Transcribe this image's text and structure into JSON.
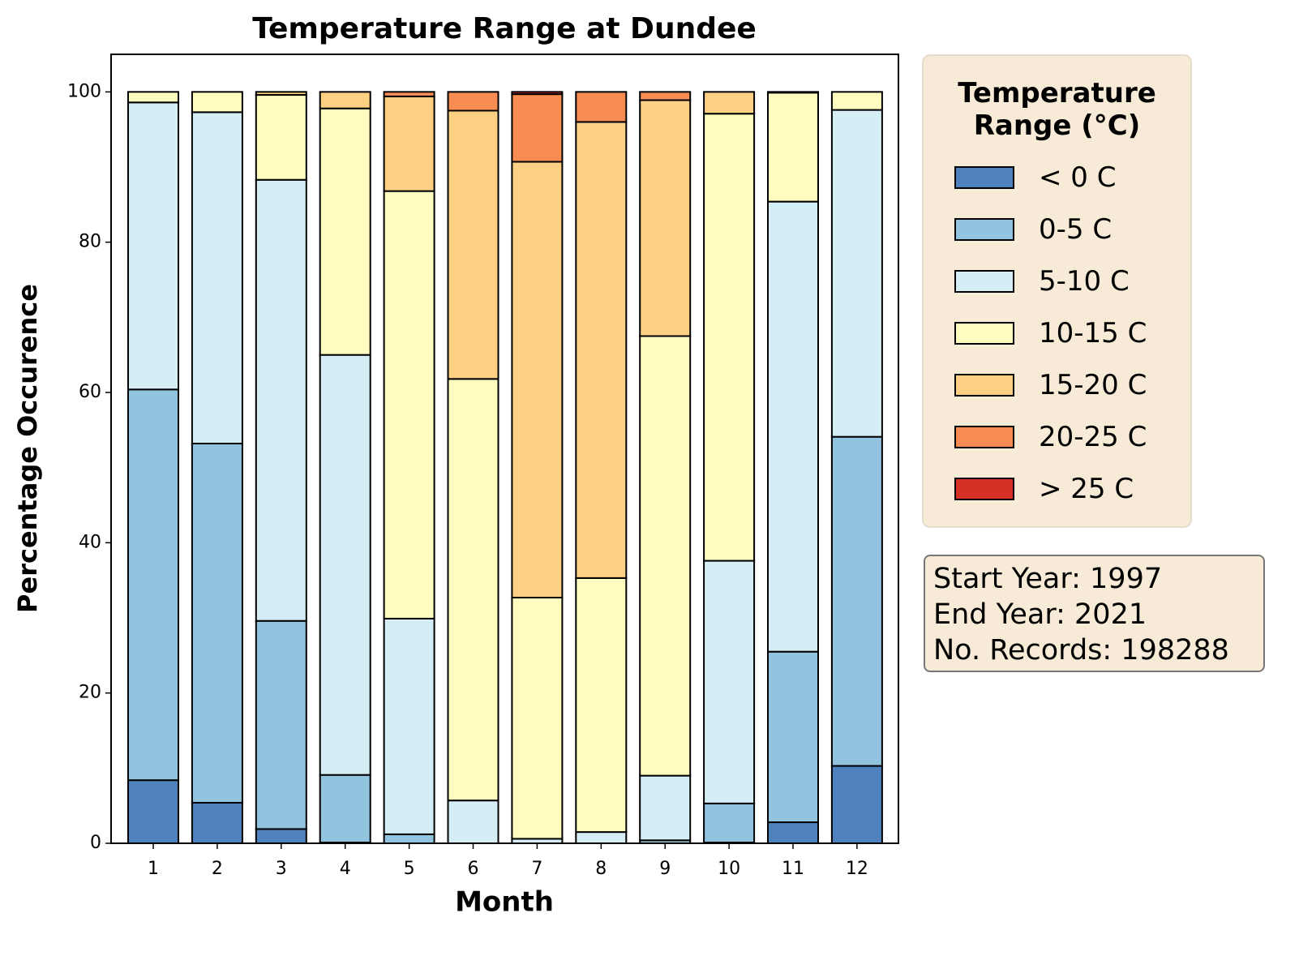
{
  "chart_data": {
    "type": "stacked_bar",
    "title": "Temperature Range at Dundee",
    "x_label": "Month",
    "y_label": "Percentage Occurence",
    "categories": [
      "1",
      "2",
      "3",
      "4",
      "5",
      "6",
      "7",
      "8",
      "9",
      "10",
      "11",
      "12"
    ],
    "ylim": [
      0,
      105
    ],
    "yticks": [
      0,
      20,
      40,
      60,
      80,
      100
    ],
    "legend_title": "Temperature Range (°C)",
    "annotation": [
      "Start Year: 1997",
      "End Year: 2021",
      "No. Records: 198288"
    ],
    "series": [
      {
        "name": "< 0 C",
        "color": "#4f81bc",
        "values": [
          8.4,
          5.4,
          1.9,
          0.1,
          0,
          0,
          0,
          0,
          0,
          0.1,
          2.8,
          10.3
        ]
      },
      {
        "name": "0-5 C",
        "color": "#92c4e0",
        "values": [
          52.0,
          47.8,
          27.7,
          9.0,
          1.2,
          0,
          0,
          0,
          0.4,
          5.2,
          22.7,
          43.8
        ]
      },
      {
        "name": "5-10 C",
        "color": "#d5edf4",
        "values": [
          38.2,
          44.1,
          58.7,
          55.9,
          28.7,
          5.7,
          0.6,
          1.5,
          8.6,
          32.3,
          59.9,
          43.5
        ]
      },
      {
        "name": "10-15 C",
        "color": "#fefcbe",
        "values": [
          1.4,
          2.7,
          11.3,
          32.8,
          56.9,
          56.1,
          32.1,
          33.8,
          58.5,
          59.5,
          14.5,
          2.4
        ]
      },
      {
        "name": "15-20 C",
        "color": "#fdd084",
        "values": [
          0,
          0,
          0.4,
          2.2,
          12.6,
          35.7,
          58.0,
          60.7,
          31.4,
          2.9,
          0.1,
          0
        ]
      },
      {
        "name": "20-25 C",
        "color": "#f78d52",
        "values": [
          0,
          0,
          0,
          0,
          0.6,
          2.5,
          9.0,
          4.0,
          1.1,
          0,
          0,
          0
        ]
      },
      {
        "name": "> 25 C",
        "color": "#d73027",
        "values": [
          0,
          0,
          0,
          0,
          0,
          0,
          0.3,
          0,
          0,
          0,
          0,
          0
        ]
      }
    ]
  }
}
